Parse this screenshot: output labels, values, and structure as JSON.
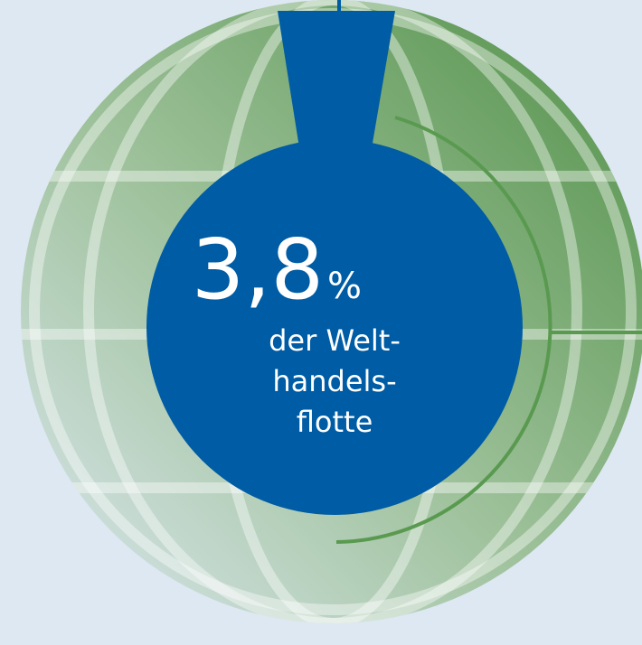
{
  "figure": {
    "value": "3,8",
    "unit": "%",
    "label_lines": [
      "der Welt-",
      "handels-",
      "flotte"
    ]
  }
}
